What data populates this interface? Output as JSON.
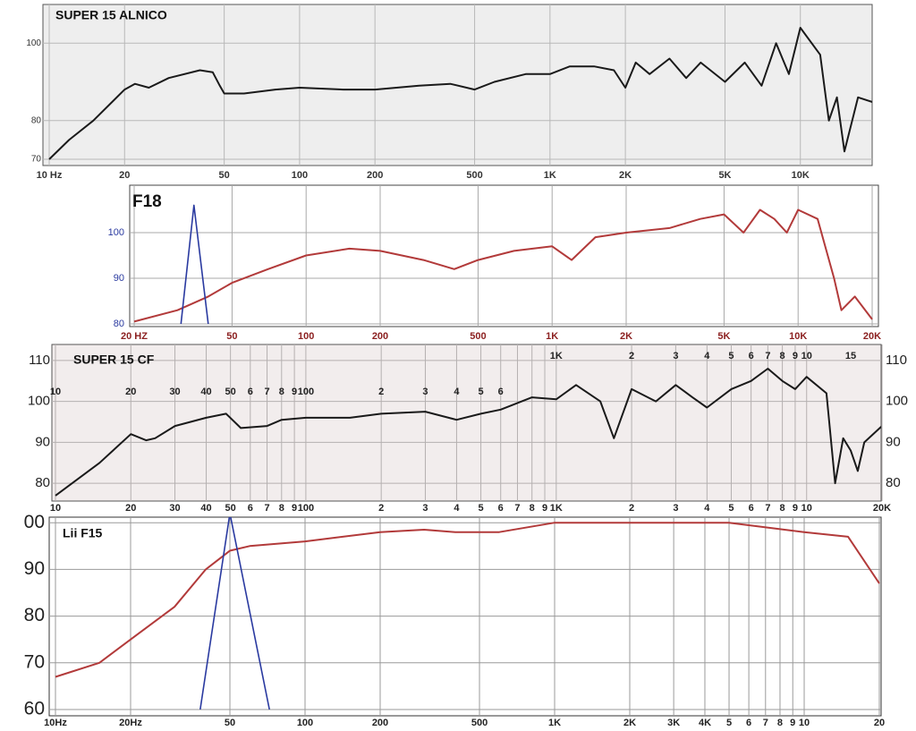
{
  "chart_data": [
    {
      "type": "line",
      "title": "SUPER 15 ALNICO",
      "log_x": true,
      "grid": true,
      "xlim": [
        10,
        20000
      ],
      "ylim": [
        70,
        110
      ],
      "xticks": [
        {
          "value": 10,
          "label": "10 Hz"
        },
        20,
        50,
        100,
        200,
        500,
        {
          "value": 1000,
          "label": "1K"
        },
        {
          "value": 2000,
          "label": "2K"
        },
        {
          "value": 5000,
          "label": "5K"
        },
        {
          "value": 10000,
          "label": "10K"
        }
      ],
      "yticks": [
        70,
        80,
        100
      ],
      "series": [
        {
          "color": "#1a1a1a",
          "x": [
            10,
            12,
            15,
            20,
            22,
            25,
            30,
            40,
            45,
            48,
            50,
            60,
            80,
            100,
            150,
            200,
            300,
            400,
            500,
            600,
            800,
            1000,
            1200,
            1500,
            1800,
            2000,
            2200,
            2500,
            3000,
            3500,
            4000,
            5000,
            6000,
            7000,
            8000,
            9000,
            10000,
            12000,
            13000,
            14000,
            15000,
            17000,
            20000
          ],
          "values": [
            70,
            75,
            80,
            88,
            89.5,
            88.5,
            91,
            93,
            92.5,
            89,
            87,
            87,
            88,
            88.5,
            88,
            88,
            89,
            89.5,
            88,
            90,
            92,
            92,
            94,
            94,
            93,
            88.5,
            95,
            92,
            96,
            91,
            95,
            90,
            95,
            89,
            100,
            92,
            104,
            97,
            80,
            86,
            72,
            86,
            84.5
          ]
        }
      ]
    },
    {
      "type": "line",
      "title": "F18",
      "log_x": true,
      "grid": true,
      "xlim": [
        20,
        20000
      ],
      "ylim": [
        80,
        110
      ],
      "xticks": [
        {
          "value": 20,
          "label": "20 HZ"
        },
        50,
        100,
        200,
        500,
        {
          "value": 1000,
          "label": "1K"
        },
        {
          "value": 2000,
          "label": "2K"
        },
        {
          "value": 5000,
          "label": "5K"
        },
        {
          "value": 10000,
          "label": "10K"
        },
        {
          "value": 20000,
          "label": "20K"
        }
      ],
      "yticks": [
        80,
        90,
        100
      ],
      "series": [
        {
          "color": "#b23a3a",
          "x": [
            20,
            30,
            40,
            50,
            70,
            100,
            150,
            200,
            300,
            400,
            500,
            700,
            1000,
            1200,
            1500,
            2000,
            3000,
            4000,
            5000,
            6000,
            7000,
            8000,
            9000,
            10000,
            12000,
            14000,
            15000,
            17000,
            20000
          ],
          "values": [
            80.5,
            83,
            86,
            89,
            92,
            95,
            96.5,
            96,
            94,
            92,
            94,
            96,
            97,
            94,
            99,
            100,
            101,
            103,
            104,
            100,
            105,
            103,
            100,
            105,
            103,
            90,
            83,
            86,
            81
          ]
        },
        {
          "color": "#2a3aa0",
          "x": [
            31,
            35,
            40
          ],
          "values": [
            80,
            106,
            80
          ]
        }
      ]
    },
    {
      "type": "line",
      "title": "SUPER 15 CF",
      "log_x": true,
      "grid": true,
      "xlim": [
        10,
        20000
      ],
      "ylim": [
        75,
        115
      ],
      "y2lim": [
        75,
        115
      ],
      "xticks": [
        10,
        20,
        30,
        40,
        50,
        {
          "value": 60,
          "label": "6"
        },
        {
          "value": 70,
          "label": "7"
        },
        {
          "value": 80,
          "label": "8"
        },
        {
          "value": 90,
          "label": "9"
        },
        100,
        {
          "value": 200,
          "label": "2"
        },
        {
          "value": 300,
          "label": "3"
        },
        {
          "value": 400,
          "label": "4"
        },
        {
          "value": 500,
          "label": "5"
        },
        {
          "value": 600,
          "label": "6"
        },
        {
          "value": 700,
          "label": "7"
        },
        {
          "value": 800,
          "label": "8"
        },
        {
          "value": 900,
          "label": "9"
        },
        {
          "value": 1000,
          "label": "1K"
        },
        {
          "value": 2000,
          "label": "2"
        },
        {
          "value": 3000,
          "label": "3"
        },
        {
          "value": 4000,
          "label": "4"
        },
        {
          "value": 5000,
          "label": "5"
        },
        {
          "value": 6000,
          "label": "6"
        },
        {
          "value": 7000,
          "label": "7"
        },
        {
          "value": 8000,
          "label": "8"
        },
        {
          "value": 9000,
          "label": "9"
        },
        {
          "value": 10000,
          "label": "10"
        },
        {
          "value": 20000,
          "label": "20K"
        }
      ],
      "x2ticks": [
        10,
        20,
        30,
        40,
        50,
        {
          "value": 60,
          "label": "6"
        },
        {
          "value": 70,
          "label": "7"
        },
        {
          "value": 80,
          "label": "8"
        },
        {
          "value": 90,
          "label": "9"
        },
        100,
        {
          "value": 200,
          "label": "2"
        },
        {
          "value": 300,
          "label": "3"
        },
        {
          "value": 400,
          "label": "4"
        },
        {
          "value": 500,
          "label": "5"
        },
        {
          "value": 600,
          "label": "6"
        },
        {
          "value": 1000,
          "label": "1K"
        },
        {
          "value": 2000,
          "label": "2"
        },
        {
          "value": 3000,
          "label": "3"
        },
        {
          "value": 4000,
          "label": "4"
        },
        {
          "value": 5000,
          "label": "5"
        },
        {
          "value": 6000,
          "label": "6"
        },
        {
          "value": 7000,
          "label": "7"
        },
        {
          "value": 8000,
          "label": "8"
        },
        {
          "value": 9000,
          "label": "9"
        },
        {
          "value": 10000,
          "label": "10"
        },
        {
          "value": 15000,
          "label": "15"
        }
      ],
      "yticks": [
        80,
        90,
        100,
        110
      ],
      "y2ticks": [
        80,
        90,
        100,
        110
      ],
      "series": [
        {
          "color": "#1a1a1a",
          "x": [
            10,
            15,
            20,
            23,
            25,
            30,
            40,
            48,
            55,
            70,
            80,
            100,
            150,
            200,
            300,
            400,
            500,
            600,
            800,
            1000,
            1200,
            1500,
            1700,
            2000,
            2500,
            3000,
            3500,
            4000,
            5000,
            6000,
            7000,
            8000,
            9000,
            10000,
            12000,
            13000,
            14000,
            15000,
            16000,
            17000,
            20000
          ],
          "values": [
            77,
            85,
            92,
            90.5,
            91,
            94,
            96,
            97,
            93.5,
            94,
            95.5,
            96,
            96,
            97,
            97.5,
            95.5,
            97,
            98,
            101,
            100.5,
            104,
            100,
            91,
            103,
            100,
            104,
            101,
            98.5,
            103,
            105,
            108,
            105,
            103,
            106,
            102,
            80,
            91,
            88,
            83,
            90,
            94
          ]
        }
      ]
    },
    {
      "type": "line",
      "title": "Lii  F15",
      "log_x": true,
      "grid": true,
      "xlim": [
        10,
        20000
      ],
      "ylim": [
        60,
        101
      ],
      "xticks": [
        {
          "value": 10,
          "label": "10Hz"
        },
        {
          "value": 20,
          "label": "20Hz"
        },
        50,
        100,
        200,
        500,
        {
          "value": 1000,
          "label": "1K"
        },
        {
          "value": 2000,
          "label": "2K"
        },
        {
          "value": 3000,
          "label": "3K"
        },
        {
          "value": 4000,
          "label": "4K"
        },
        {
          "value": 5000,
          "label": "5"
        },
        {
          "value": 6000,
          "label": "6"
        },
        {
          "value": 7000,
          "label": "7"
        },
        {
          "value": 8000,
          "label": "8"
        },
        {
          "value": 9000,
          "label": "9"
        },
        {
          "value": 10000,
          "label": "10"
        },
        {
          "value": 20000,
          "label": "20"
        }
      ],
      "yticks": [
        60,
        70,
        80,
        90,
        {
          "value": 100,
          "label": "00"
        }
      ],
      "series": [
        {
          "color": "#b23a3a",
          "x": [
            10,
            15,
            20,
            30,
            40,
            50,
            60,
            100,
            200,
            300,
            400,
            600,
            1000,
            2000,
            5000,
            10000,
            15000,
            20000
          ],
          "values": [
            67,
            70,
            75,
            82,
            90,
            94,
            95,
            96,
            98,
            98.5,
            98,
            98,
            100,
            100,
            100,
            98,
            97,
            87
          ]
        },
        {
          "color": "#2a3aa0",
          "x": [
            38,
            50,
            72
          ],
          "values": [
            60,
            102,
            60
          ]
        }
      ]
    }
  ]
}
